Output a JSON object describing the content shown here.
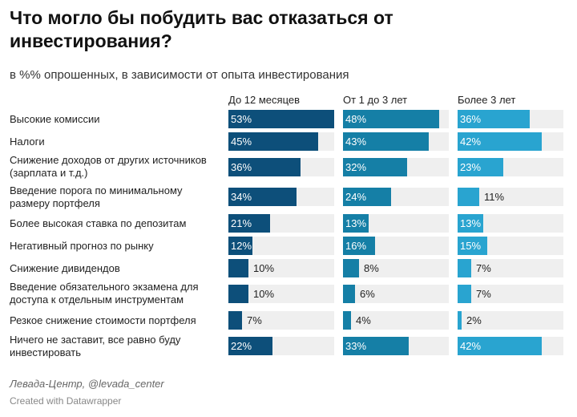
{
  "header": {
    "title": "Что могло бы побудить вас отказаться от инвестирования?",
    "subtitle": "в %% опрошенных, в зависимости от опыта инвестирования"
  },
  "footer": {
    "source": "Левада-Центр, @levada_center",
    "credit": "Created with Datawrapper"
  },
  "colors": {
    "series": [
      "#0d4f7a",
      "#157fa6",
      "#29a4d0"
    ],
    "track": "#efefef"
  },
  "chart_data": {
    "type": "bar",
    "title": "Что могло бы побудить вас отказаться от инвестирования?",
    "subtitle": "в %% опрошенных, в зависимости от опыта инвестирования",
    "xlim": [
      0,
      53
    ],
    "categories": [
      "Высокие комиссии",
      "Налоги",
      "Снижение доходов от других источников (зарплата и т.д.)",
      "Введение порога по минимальному размеру портфеля",
      "Более высокая ставка по депозитам",
      "Негативный прогноз по рынку",
      "Снижение дивидендов",
      "Введение обязательного экзамена для доступа к отдельным инструментам",
      "Резкое снижение стоимости портфеля",
      "Ничего не заставит, все равно буду инвестировать"
    ],
    "series": [
      {
        "name": "До 12 месяцев",
        "values": [
          53,
          45,
          36,
          34,
          21,
          12,
          10,
          10,
          7,
          22
        ]
      },
      {
        "name": "От 1 до 3 лет",
        "values": [
          48,
          43,
          32,
          24,
          13,
          16,
          8,
          6,
          4,
          33
        ]
      },
      {
        "name": "Более 3 лет",
        "values": [
          36,
          42,
          23,
          11,
          13,
          15,
          7,
          7,
          2,
          42
        ]
      }
    ],
    "value_suffix": "%"
  }
}
